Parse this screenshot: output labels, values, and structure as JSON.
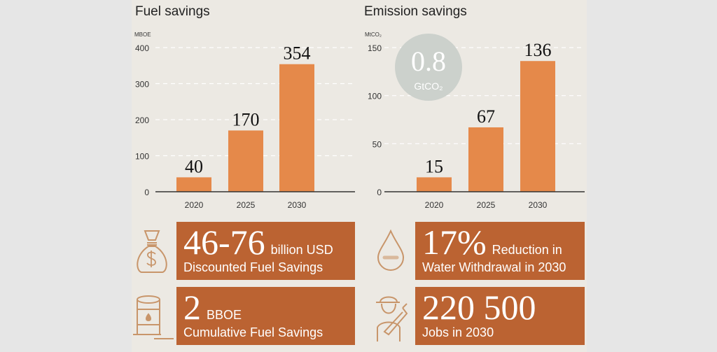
{
  "colors": {
    "bar": "#e5894a",
    "box": "#bb6332",
    "panel": "#ece9e3",
    "circle": "#ccd1cc",
    "icon": "#c8956a"
  },
  "chart_data": [
    {
      "type": "bar",
      "title": "Fuel savings",
      "ylabel": "MBOE",
      "categories": [
        "2020",
        "2025",
        "2030"
      ],
      "values": [
        40,
        170,
        354
      ],
      "data_labels": [
        "40",
        "170",
        "354"
      ],
      "yticks": [
        0,
        100,
        200,
        300,
        400
      ],
      "ylim": [
        0,
        400
      ],
      "grid": true
    },
    {
      "type": "bar",
      "title": "Emission savings",
      "ylabel": "MtCO₂",
      "categories": [
        "2020",
        "2025",
        "2030"
      ],
      "values": [
        15,
        67,
        136
      ],
      "data_labels": [
        "15",
        "67",
        "136"
      ],
      "yticks": [
        0,
        50,
        100,
        150
      ],
      "ylim": [
        0,
        150
      ],
      "grid": true,
      "annotation": {
        "value": "0.8",
        "unit": "GtCO₂"
      }
    }
  ],
  "stats": [
    {
      "value": "46-76",
      "unit": "billion USD",
      "label": "Discounted Fuel Savings",
      "icon": "money-bag-icon"
    },
    {
      "value": "2",
      "unit": "BBOE",
      "label": "Cumulative Fuel Savings",
      "icon": "oil-barrel-icon"
    },
    {
      "value": "17%",
      "unit": "Reduction in",
      "label": "Water Withdrawal in 2030",
      "icon": "water-drop-icon"
    },
    {
      "value": "220 500",
      "unit": "",
      "label": "Jobs in 2030",
      "icon": "worker-icon"
    }
  ]
}
